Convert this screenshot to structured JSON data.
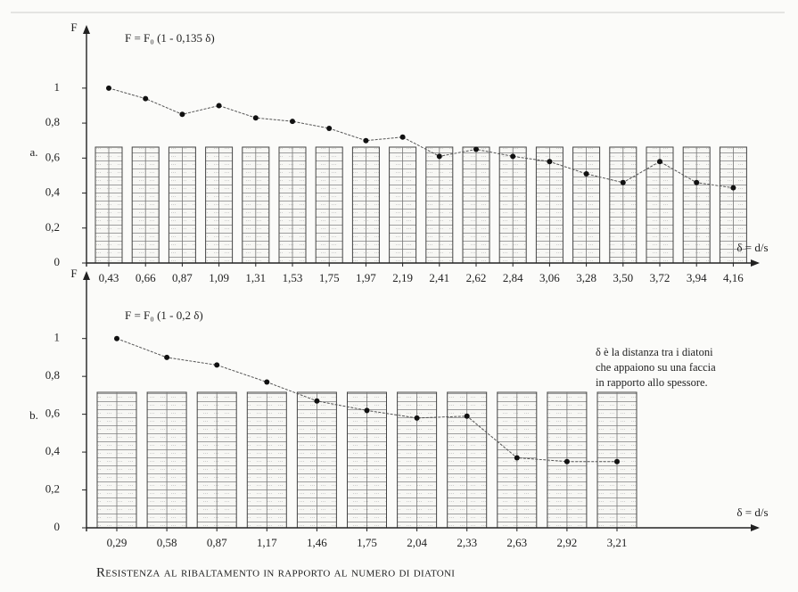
{
  "title": "Resistenza al ribaltamento in rapporto al numero di diatoni",
  "chart_data": [
    {
      "type": "line",
      "panel_label": "a.",
      "formula": "F = F₀ (1 - 0,135 δ)",
      "y_label": "F",
      "x_label": "δ = d/s",
      "categories": [
        "0,43",
        "0,66",
        "0,87",
        "1,09",
        "1,31",
        "1,53",
        "1,75",
        "1,97",
        "2,19",
        "2,41",
        "2,62",
        "2,84",
        "3,06",
        "3,28",
        "3,50",
        "3,72",
        "3,94",
        "4,16"
      ],
      "values": [
        1.0,
        0.94,
        0.85,
        0.9,
        0.83,
        0.81,
        0.77,
        0.7,
        0.72,
        0.61,
        0.65,
        0.61,
        0.58,
        0.51,
        0.46,
        0.58,
        0.46,
        0.43
      ],
      "color": "#111111",
      "ylim": [
        0,
        1.3
      ],
      "yticks": [
        0,
        {
          "value": 0.2,
          "label": "0,2"
        },
        {
          "value": 0.4,
          "label": "0,4"
        },
        {
          "value": 0.6,
          "label": "0,6"
        },
        {
          "value": 0.8,
          "label": "0,8"
        },
        1
      ]
    },
    {
      "type": "line",
      "panel_label": "b.",
      "formula": "F = F₀ (1 - 0,2 δ)",
      "y_label": "F",
      "x_label": "δ = d/s",
      "annotation": [
        "δ è la distanza tra i diatoni",
        "che appaiono su una faccia",
        "in rapporto allo spessore."
      ],
      "categories": [
        "0,29",
        "0,58",
        "0,87",
        "1,17",
        "1,46",
        "1,75",
        "2,04",
        "2,33",
        "2,63",
        "2,92",
        "3,21"
      ],
      "values": [
        1.0,
        0.9,
        0.86,
        0.77,
        0.67,
        0.62,
        0.58,
        0.59,
        0.37,
        0.35,
        0.35
      ],
      "color": "#111111",
      "ylim": [
        0,
        1.3
      ],
      "yticks": [
        0,
        {
          "value": 0.2,
          "label": "0,2"
        },
        {
          "value": 0.4,
          "label": "0,4"
        },
        {
          "value": 0.6,
          "label": "0,6"
        },
        {
          "value": 0.8,
          "label": "0,8"
        },
        1
      ]
    }
  ]
}
